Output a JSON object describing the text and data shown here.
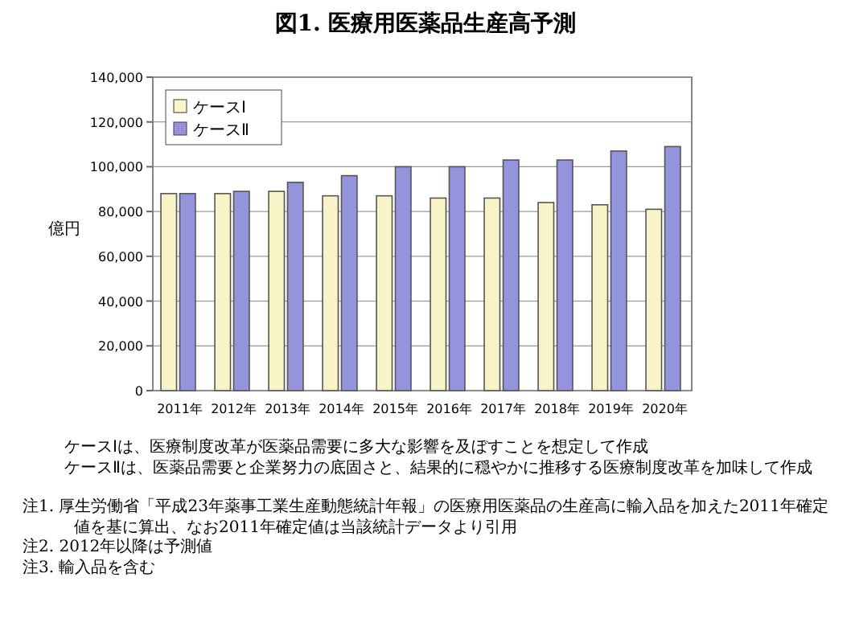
{
  "chart_data": {
    "type": "bar",
    "title": "図1. 医療用医薬品生産高予測",
    "ylabel": "億円",
    "categories": [
      "2011年",
      "2012年",
      "2013年",
      "2014年",
      "2015年",
      "2016年",
      "2017年",
      "2018年",
      "2019年",
      "2020年"
    ],
    "series": [
      {
        "name": "ケースⅠ",
        "color": "#f8f4c8",
        "values": [
          88000,
          88000,
          89000,
          87000,
          87000,
          86000,
          86000,
          84000,
          83000,
          81000
        ]
      },
      {
        "name": "ケースⅡ",
        "color": "#9494dc",
        "values": [
          88000,
          89000,
          93000,
          96000,
          100000,
          100000,
          103000,
          103000,
          107000,
          109000
        ]
      }
    ],
    "ylim": [
      0,
      140000
    ],
    "yticks": [
      {
        "value": 0,
        "label": "0"
      },
      {
        "value": 20000,
        "label": "20,000"
      },
      {
        "value": 40000,
        "label": "40,000"
      },
      {
        "value": 60000,
        "label": "60,000"
      },
      {
        "value": 80000,
        "label": "80,000"
      },
      {
        "value": 100000,
        "label": "100,000"
      },
      {
        "value": 120000,
        "label": "120,000"
      },
      {
        "value": 140000,
        "label": "140,000"
      }
    ],
    "grid": "y",
    "legend": "top left",
    "annotations": [
      "ケースⅠは、医療制度改革が医薬品需要に多大な影響を及ぼすことを想定して作成",
      "ケースⅡは、医薬品需要と企業努力の底固さと、結果的に穏やかに推移する医療制度改革を加味して作成",
      "注1. 厚生労働省「平成23年薬事工業生産動態統計年報」の医療用医薬品の生産高に輸入品を加えた2011年確定値を基に算出、なお2011年確定値は当該統計データより引用",
      "注2. 2012年以降は予測値",
      "注3. 輸入品を含む"
    ]
  }
}
